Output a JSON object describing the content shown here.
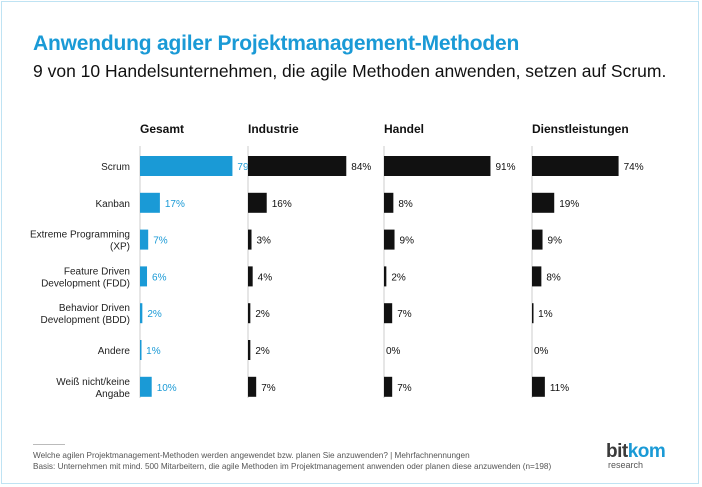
{
  "header": {
    "title": "Anwendung agiler Projektmanagement-Methoden",
    "subtitle": "9 von 10 Handelsunternehmen, die agile Methoden anwenden, setzen auf Scrum."
  },
  "footnotes": {
    "question": "Welche agilen Projektmanagement-Methoden werden angewendet bzw. planen Sie anzuwenden? | Mehrfachnennungen",
    "basis": "Basis: Unternehmen mit mind. 500 Mitarbeitern, die agile Methoden im Projektmanagement anwenden oder planen diese anzuwenden (n=198)"
  },
  "logo": {
    "main_a": "bit",
    "main_b": "kom",
    "sub": "research"
  },
  "colors": {
    "accent": "#1a9ad6",
    "dark": "#111111"
  },
  "chart_data": {
    "type": "bar",
    "orientation": "horizontal",
    "unit": "%",
    "categories": [
      [
        "Scrum"
      ],
      [
        "Kanban"
      ],
      [
        "Extreme Programming",
        "(XP)"
      ],
      [
        "Feature Driven",
        "Development (FDD)"
      ],
      [
        "Behavior Driven",
        "Development (BDD)"
      ],
      [
        "Andere"
      ],
      [
        "Weiß nicht/keine",
        "Angabe"
      ]
    ],
    "series": [
      {
        "name": "Gesamt",
        "color": "#1a9ad6",
        "values": [
          79,
          17,
          7,
          6,
          2,
          1,
          10
        ]
      },
      {
        "name": "Industrie",
        "color": "#111111",
        "values": [
          84,
          16,
          3,
          4,
          2,
          2,
          7
        ]
      },
      {
        "name": "Handel",
        "color": "#111111",
        "values": [
          91,
          8,
          9,
          2,
          7,
          0,
          7
        ]
      },
      {
        "name": "Dienstleistungen",
        "color": "#111111",
        "values": [
          74,
          19,
          9,
          8,
          1,
          0,
          11
        ]
      }
    ]
  }
}
